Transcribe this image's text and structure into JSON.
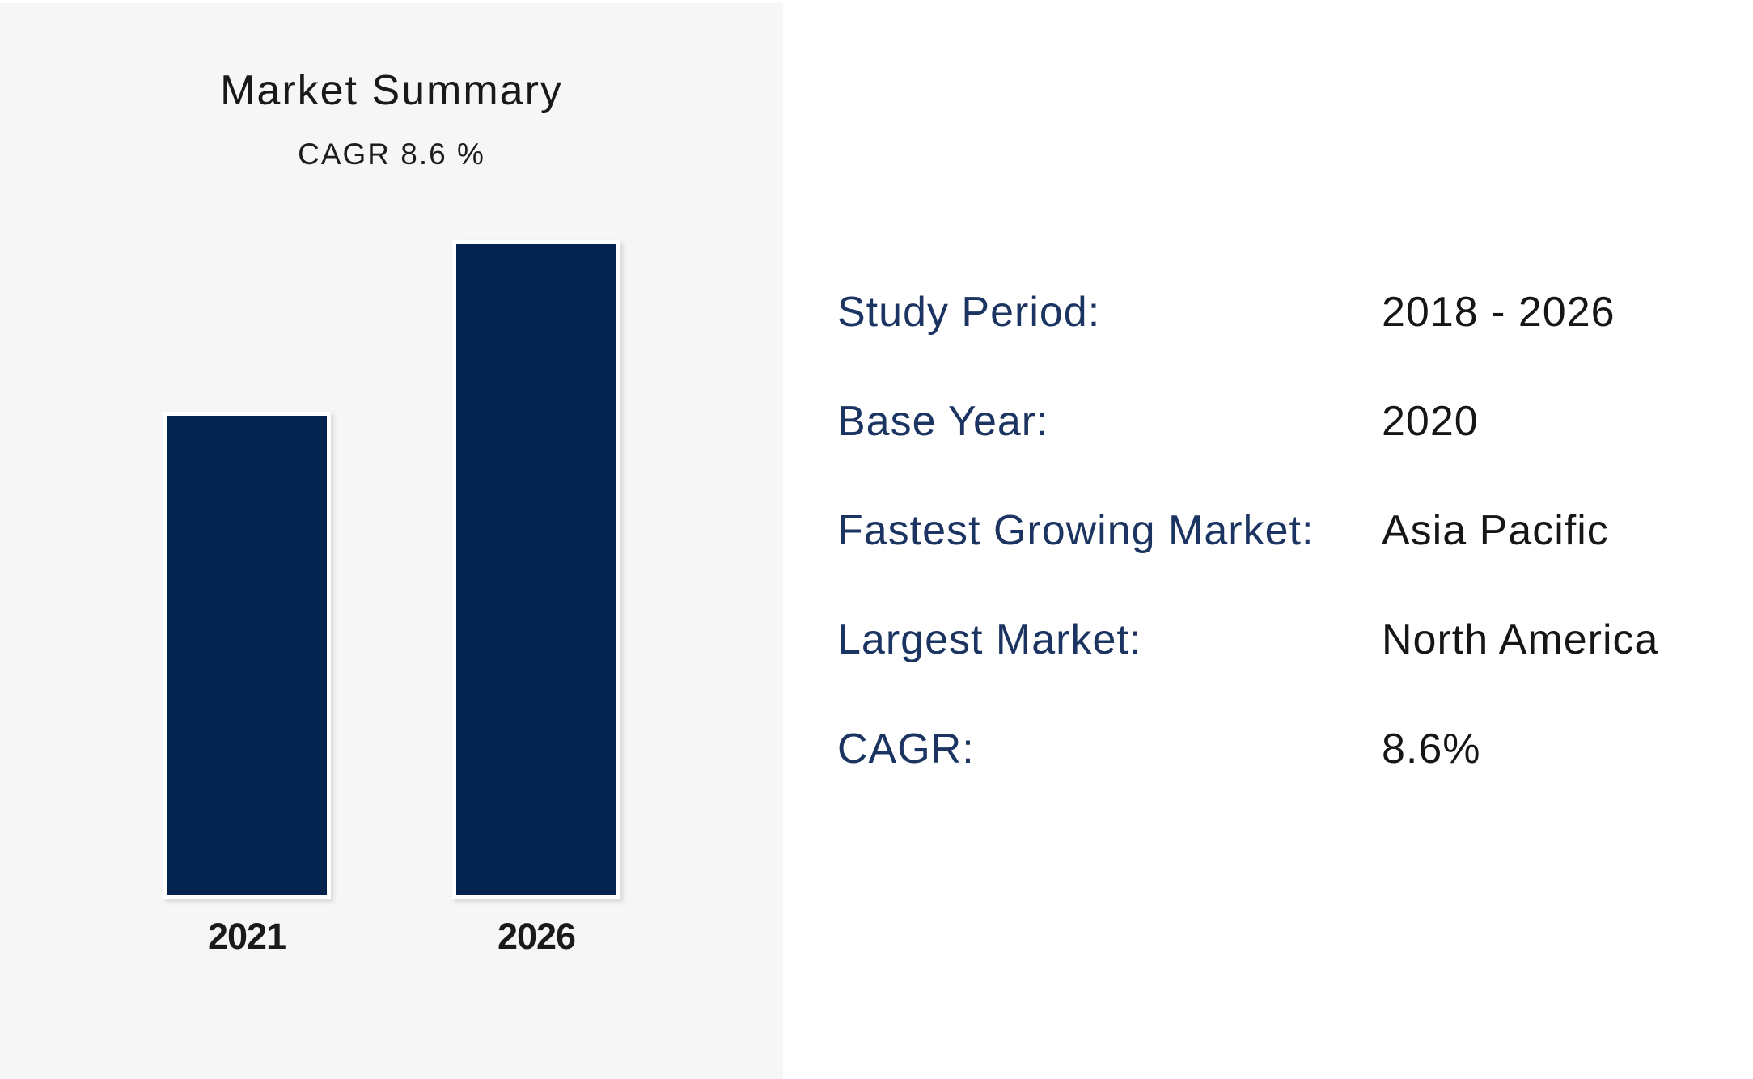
{
  "page": {
    "background": "#ffffff",
    "panel_background": "#f6f6f6"
  },
  "chart_data": {
    "type": "bar",
    "title": "Market Summary",
    "subtitle": "CAGR 8.6 %",
    "categories": [
      "2021",
      "2026"
    ],
    "values": [
      74,
      100
    ],
    "ylim": [
      0,
      100
    ],
    "xlabel": "",
    "ylabel": "",
    "grid": false,
    "value_axis_visible": false,
    "legend": "none",
    "bar_color": "#04234f",
    "note": "no value axis shown; values are relative bar heights with 2026 bar = 100"
  },
  "facts": {
    "label_color": "#1b3461",
    "value_color": "#161616",
    "rows": [
      {
        "label": "Study Period:",
        "value": "2018 - 2026"
      },
      {
        "label": "Base Year:",
        "value": "2020"
      },
      {
        "label": "Fastest Growing Market:",
        "value": "Asia Pacific"
      },
      {
        "label": "Largest Market:",
        "value": "North America"
      },
      {
        "label": "CAGR:",
        "value": "8.6%"
      }
    ]
  }
}
